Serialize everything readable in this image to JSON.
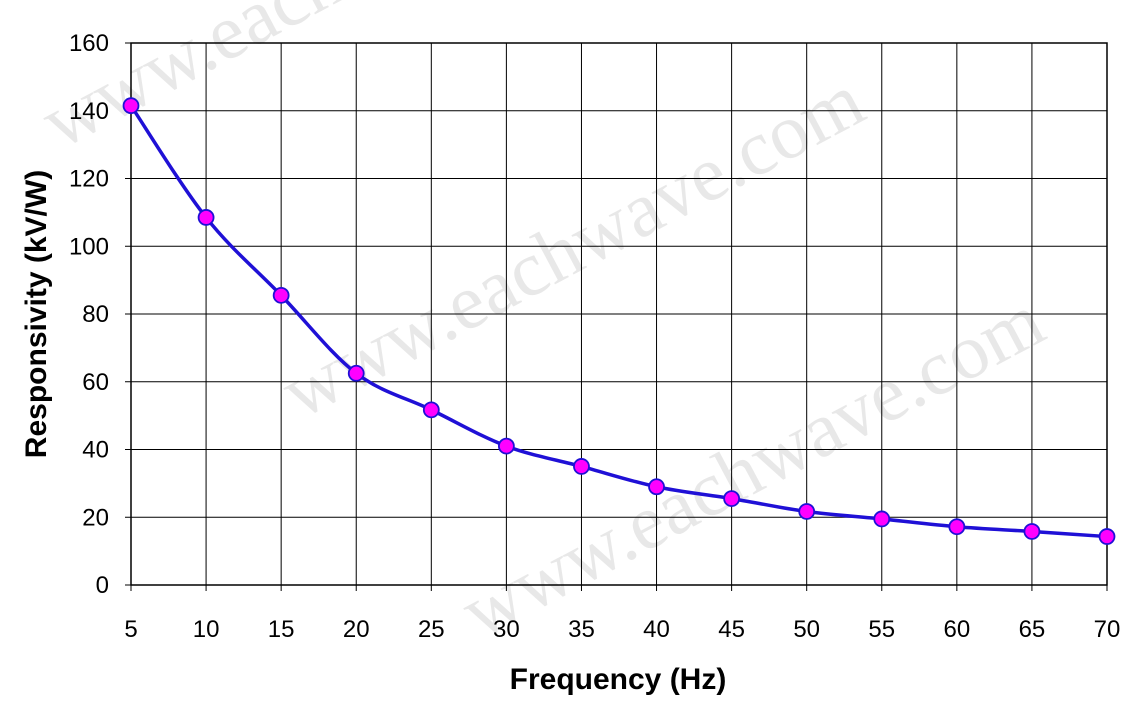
{
  "watermark": "www.eachwave.com",
  "colors": {
    "line": "#1f10d6",
    "marker_fill": "#ff00ff",
    "marker_stroke": "#1f10d6",
    "grid": "#000000",
    "watermark": "#d6d6d6"
  },
  "chart_data": {
    "type": "line",
    "title": "",
    "xlabel": "Frequency (Hz)",
    "ylabel": "Responsivity (kV/W)",
    "xlim": [
      5,
      70
    ],
    "ylim": [
      0,
      160
    ],
    "x_ticks": [
      5,
      10,
      15,
      20,
      25,
      30,
      35,
      40,
      45,
      50,
      55,
      60,
      65,
      70
    ],
    "y_ticks": [
      0,
      20,
      40,
      60,
      80,
      100,
      120,
      140,
      160
    ],
    "grid": true,
    "series": [
      {
        "x": [
          5,
          10,
          15,
          20,
          25,
          30,
          35,
          40,
          45,
          50,
          55,
          60,
          65,
          70
        ],
        "values": [
          141.5,
          108.5,
          85.5,
          62.5,
          51.7,
          41,
          35,
          29,
          25.5,
          21.7,
          19.5,
          17.2,
          15.8,
          14.3
        ]
      }
    ]
  }
}
